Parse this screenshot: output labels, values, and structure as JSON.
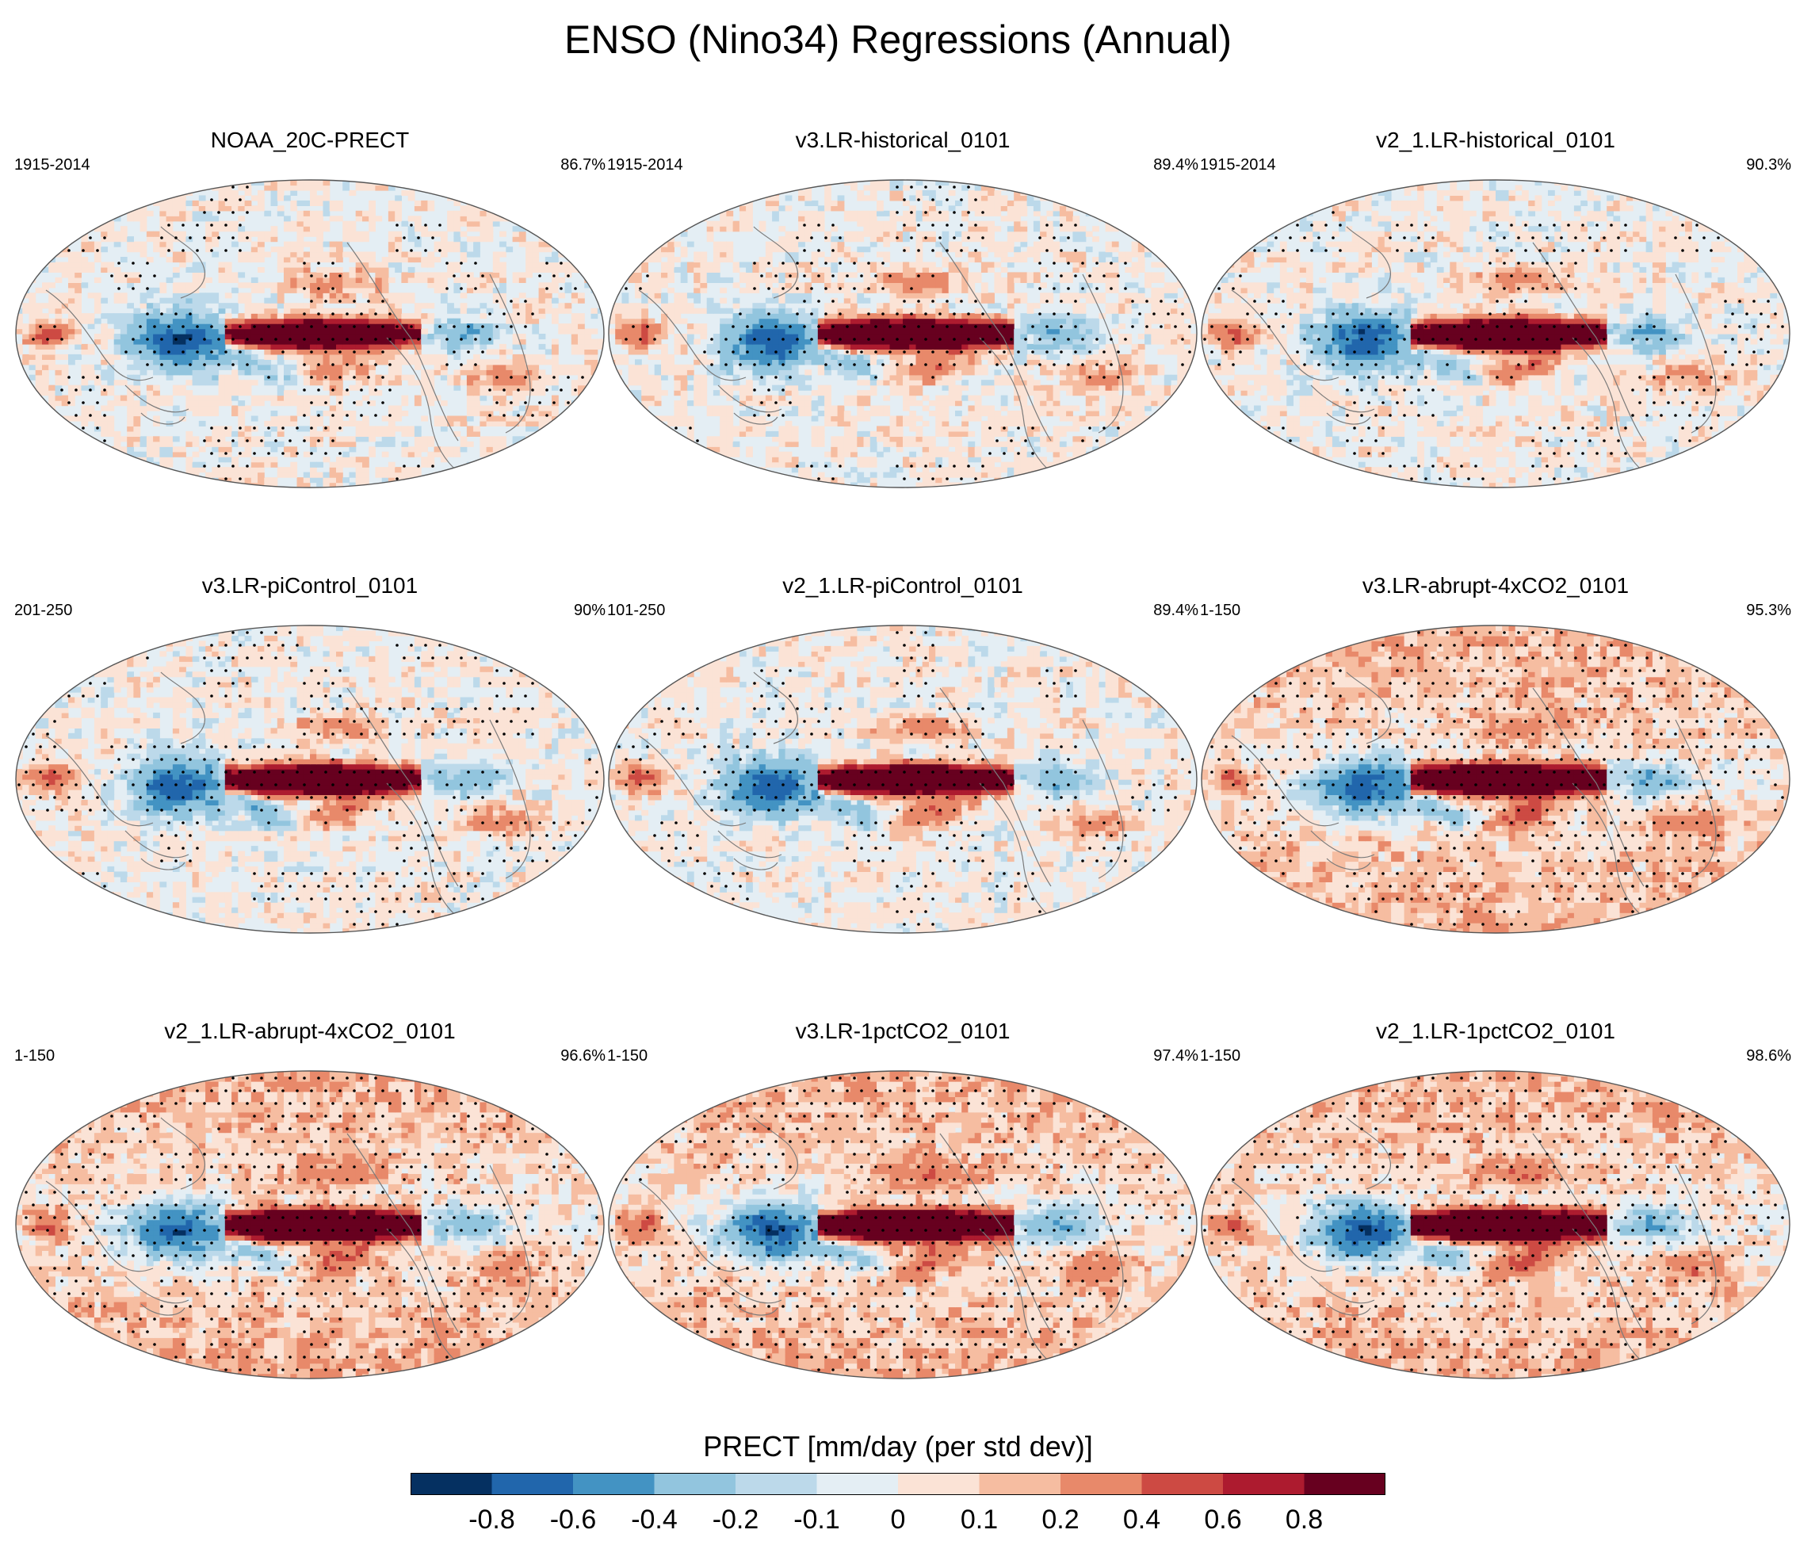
{
  "chart_data": {
    "type": "heatmap",
    "title": "ENSO (Nino34) Regressions (Annual)",
    "projection": "Robinson (Pacific-centered)",
    "variable": "PRECT",
    "colorbar": {
      "title": "PRECT [mm/day (per std dev)]",
      "tick_labels": [
        "-0.8",
        "-0.6",
        "-0.4",
        "-0.2",
        "-0.1",
        "0",
        "0.1",
        "0.2",
        "0.4",
        "0.6",
        "0.8"
      ],
      "levels": [
        -0.8,
        -0.6,
        -0.4,
        -0.2,
        -0.1,
        0,
        0.1,
        0.2,
        0.4,
        0.6,
        0.8
      ],
      "colors": [
        "#053061",
        "#2166ac",
        "#4393c3",
        "#92c5de",
        "#bcd9ea",
        "#e4eef4",
        "#fbe3d6",
        "#f6bda1",
        "#e8896a",
        "#cd4a43",
        "#ad1b2f",
        "#67001f"
      ]
    },
    "panels": [
      {
        "name": "NOAA_20C-PRECT",
        "period": "1915-2014",
        "stipple_pct": "86.7%",
        "el_nino_strength": 0.85,
        "stipple_density": 0.35
      },
      {
        "name": "v3.LR-historical_0101",
        "period": "1915-2014",
        "stipple_pct": "89.4%",
        "el_nino_strength": 1.0,
        "stipple_density": 0.38
      },
      {
        "name": "v2_1.LR-historical_0101",
        "period": "1915-2014",
        "stipple_pct": "90.3%",
        "el_nino_strength": 1.0,
        "stipple_density": 0.4
      },
      {
        "name": "v3.LR-piControl_0101",
        "period": "201-250",
        "stipple_pct": "90%",
        "el_nino_strength": 1.0,
        "stipple_density": 0.4
      },
      {
        "name": "v2_1.LR-piControl_0101",
        "period": "101-250",
        "stipple_pct": "89.4%",
        "el_nino_strength": 1.0,
        "stipple_density": 0.38
      },
      {
        "name": "v3.LR-abrupt-4xCO2_0101",
        "period": "1-150",
        "stipple_pct": "95.3%",
        "el_nino_strength": 1.15,
        "stipple_density": 0.7
      },
      {
        "name": "v2_1.LR-abrupt-4xCO2_0101",
        "period": "1-150",
        "stipple_pct": "96.6%",
        "el_nino_strength": 1.15,
        "stipple_density": 0.75
      },
      {
        "name": "v3.LR-1pctCO2_0101",
        "period": "1-150",
        "stipple_pct": "97.4%",
        "el_nino_strength": 1.15,
        "stipple_density": 0.8
      },
      {
        "name": "v2_1.LR-1pctCO2_0101",
        "period": "1-150",
        "stipple_pct": "98.6%",
        "el_nino_strength": 1.15,
        "stipple_density": 0.85
      }
    ]
  }
}
